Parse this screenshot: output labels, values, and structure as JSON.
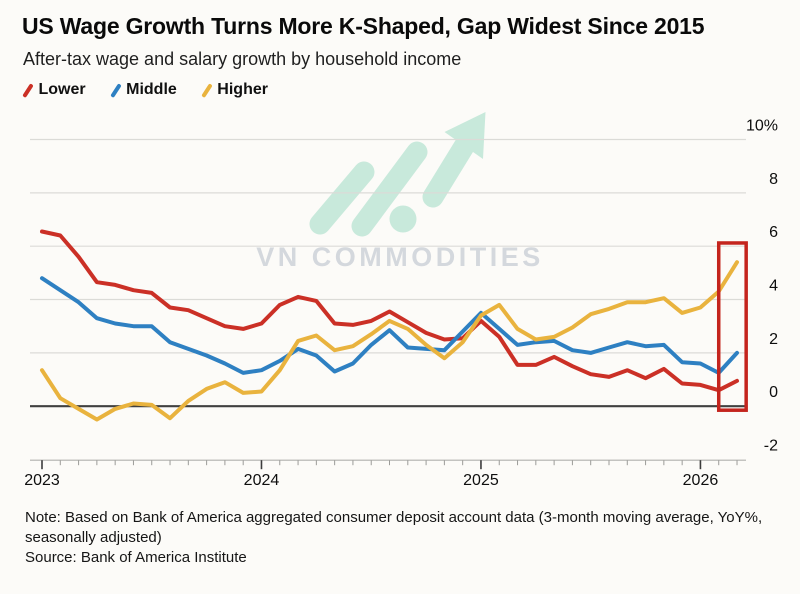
{
  "header": {
    "title": "US Wage Growth Turns More K-Shaped, Gap Widest Since 2015",
    "subtitle": "After-tax wage and salary growth by household income"
  },
  "legend": [
    {
      "label": "Lower",
      "color": "#cb3026"
    },
    {
      "label": "Middle",
      "color": "#2e80c2"
    },
    {
      "label": "Higher",
      "color": "#e9b33e"
    }
  ],
  "watermark": {
    "text": "VN COMMODITIES",
    "logo_color": "#b3e2cf",
    "text_color": "#c4cad3"
  },
  "chart_data": {
    "type": "line",
    "title": "After-tax wage and salary growth by household income",
    "x_unit": "month",
    "x_start": "2023-01",
    "x_end": "2026-03",
    "n_months": 39,
    "ylim": [
      -2,
      10
    ],
    "grid": true,
    "y_ticks": [
      {
        "value": 10,
        "label": "10%"
      },
      {
        "value": 8,
        "label": "8"
      },
      {
        "value": 6,
        "label": "6"
      },
      {
        "value": 4,
        "label": "4"
      },
      {
        "value": 2,
        "label": "2"
      },
      {
        "value": 0,
        "label": "0"
      },
      {
        "value": -2,
        "label": "-2"
      }
    ],
    "x_years": [
      {
        "label": "2023",
        "month": 0
      },
      {
        "label": "2024",
        "month": 12
      },
      {
        "label": "2025",
        "month": 24
      },
      {
        "label": "2026",
        "month": 36
      }
    ],
    "series": [
      {
        "name": "Lower",
        "color": "#cb3026",
        "values": [
          6.55,
          6.4,
          5.6,
          4.65,
          4.55,
          4.35,
          4.25,
          3.7,
          3.6,
          3.3,
          3.0,
          2.9,
          3.1,
          3.8,
          4.1,
          3.95,
          3.1,
          3.05,
          3.2,
          3.55,
          3.15,
          2.75,
          2.5,
          2.55,
          3.2,
          2.6,
          1.55,
          1.55,
          1.85,
          1.5,
          1.2,
          1.1,
          1.35,
          1.05,
          1.4,
          0.85,
          0.8,
          0.6,
          0.95
        ]
      },
      {
        "name": "Middle",
        "color": "#2e80c2",
        "values": [
          4.8,
          4.35,
          3.9,
          3.3,
          3.1,
          3.0,
          3.0,
          2.4,
          2.15,
          1.9,
          1.6,
          1.25,
          1.35,
          1.7,
          2.15,
          1.9,
          1.3,
          1.6,
          2.3,
          2.85,
          2.2,
          2.15,
          2.1,
          2.8,
          3.5,
          2.9,
          2.3,
          2.4,
          2.45,
          2.1,
          2.0,
          2.2,
          2.4,
          2.25,
          2.3,
          1.65,
          1.6,
          1.25,
          2.0
        ]
      },
      {
        "name": "Higher",
        "color": "#e9b33e",
        "values": [
          1.35,
          0.3,
          -0.1,
          -0.5,
          -0.1,
          0.1,
          0.05,
          -0.45,
          0.2,
          0.65,
          0.9,
          0.5,
          0.55,
          1.35,
          2.45,
          2.65,
          2.1,
          2.25,
          2.7,
          3.2,
          2.9,
          2.3,
          1.8,
          2.4,
          3.4,
          3.8,
          2.9,
          2.5,
          2.6,
          2.95,
          3.45,
          3.65,
          3.9,
          3.9,
          4.05,
          3.5,
          3.7,
          4.3,
          5.4
        ]
      }
    ],
    "highlight_box": {
      "month_from": 37.0,
      "month_to": 38.5,
      "value_from": -0.15,
      "value_to": 6.12,
      "color": "#c4241d"
    }
  },
  "footer": {
    "note_line1": "Note: Based on Bank of America aggregated consumer deposit account data (3-month moving average, YoY%,",
    "note_line2": "seasonally adjusted)",
    "source": "Source: Bank of America Institute"
  }
}
